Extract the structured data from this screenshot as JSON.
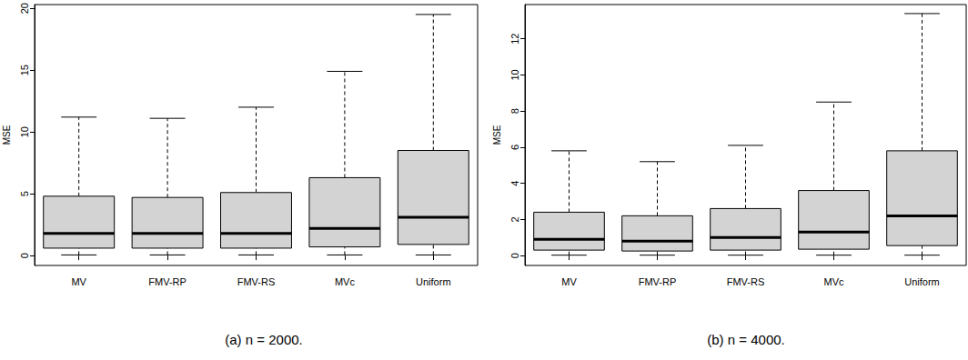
{
  "chart_data": [
    {
      "type": "boxplot",
      "title": "(a) n = 2000.",
      "y_label": "MSE",
      "categories": [
        "MV",
        "FMV-RP",
        "FMV-RS",
        "MVc",
        "Uniform"
      ],
      "values": [
        [
          0.05,
          0.6,
          1.8,
          4.8,
          11.2
        ],
        [
          0.05,
          0.6,
          1.8,
          4.7,
          11.1
        ],
        [
          0.05,
          0.6,
          1.8,
          5.1,
          12.0
        ],
        [
          0.05,
          0.7,
          2.2,
          6.3,
          14.9
        ],
        [
          0.05,
          0.9,
          3.1,
          8.5,
          19.5
        ]
      ],
      "color": "#d3d3d3",
      "ylim": [
        -0.8,
        20.3
      ],
      "yticks": [
        0,
        5,
        10,
        15,
        20
      ],
      "grid": false
    },
    {
      "type": "boxplot",
      "title": "(b) n = 4000.",
      "y_label": "MSE",
      "categories": [
        "MV",
        "FMV-RP",
        "FMV-RS",
        "MVc",
        "Uniform"
      ],
      "values": [
        [
          0.02,
          0.3,
          0.9,
          2.4,
          5.8
        ],
        [
          0.02,
          0.25,
          0.8,
          2.2,
          5.2
        ],
        [
          0.02,
          0.3,
          1.0,
          2.6,
          6.1
        ],
        [
          0.02,
          0.35,
          1.3,
          3.6,
          8.5
        ],
        [
          0.02,
          0.55,
          2.2,
          5.8,
          13.4
        ]
      ],
      "color": "#d3d3d3",
      "ylim": [
        -0.55,
        13.9
      ],
      "yticks": [
        0,
        2,
        4,
        6,
        8,
        10,
        12
      ],
      "grid": false
    }
  ]
}
